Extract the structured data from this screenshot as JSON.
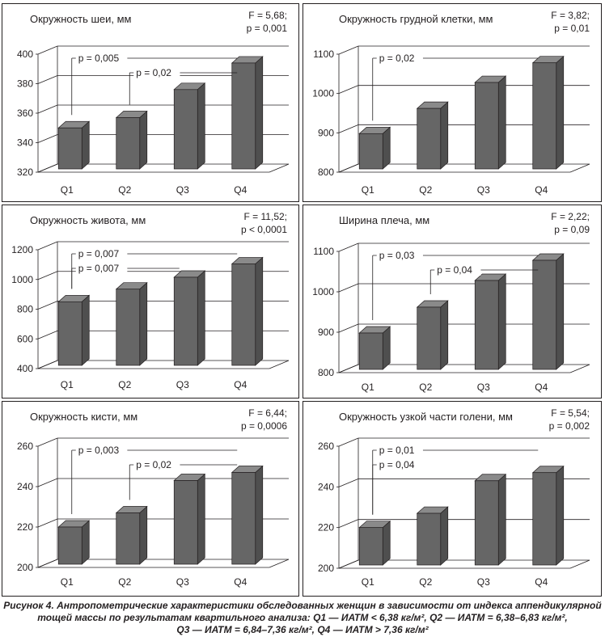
{
  "chart_data": [
    {
      "type": "bar",
      "title": "Окружность шеи, мм",
      "stats": [
        "F = 5,68;",
        "p = 0,001"
      ],
      "categories": [
        "Q1",
        "Q2",
        "Q3",
        "Q4"
      ],
      "values": [
        350,
        357,
        376,
        394
      ],
      "ylim": [
        320,
        400
      ],
      "yticks": [
        320,
        340,
        360,
        380,
        400
      ],
      "comparisons": [
        {
          "label": "p = 0,005",
          "from": "Q1",
          "to": "Q4"
        },
        {
          "label": "p = 0,02",
          "from": "Q2",
          "to": "Q4"
        }
      ],
      "grid": true
    },
    {
      "type": "bar",
      "title": "Окружность грудной клетки, мм",
      "stats": [
        "F = 3,82;",
        "p = 0,01"
      ],
      "categories": [
        "Q1",
        "Q2",
        "Q3",
        "Q4"
      ],
      "values": [
        898,
        962,
        1028,
        1078
      ],
      "ylim": [
        800,
        1100
      ],
      "yticks": [
        800,
        900,
        1000,
        1100
      ],
      "comparisons": [
        {
          "label": "p = 0,02",
          "from": "Q1",
          "to": "Q4"
        }
      ],
      "grid": true
    },
    {
      "type": "bar",
      "title": "Окружность живота, мм",
      "stats": [
        "F = 11,52;",
        "p < 0,0001"
      ],
      "categories": [
        "Q1",
        "Q2",
        "Q3",
        "Q4"
      ],
      "values": [
        850,
        935,
        1015,
        1105
      ],
      "ylim": [
        400,
        1200
      ],
      "yticks": [
        400,
        600,
        800,
        1000,
        1200
      ],
      "comparisons": [
        {
          "label": "p = 0,007",
          "from": "Q1",
          "to": "Q4"
        },
        {
          "label": "p = 0,007",
          "from": "Q1",
          "to": "Q3"
        }
      ],
      "grid": true
    },
    {
      "type": "bar",
      "title": "Ширина плеча, мм",
      "stats": [
        "F = 2,22;",
        "p = 0,09"
      ],
      "categories": [
        "Q1",
        "Q2",
        "Q3",
        "Q4"
      ],
      "values": [
        898,
        962,
        1028,
        1078
      ],
      "ylim": [
        800,
        1100
      ],
      "yticks": [
        800,
        900,
        1000,
        1100
      ],
      "comparisons": [
        {
          "label": "p = 0,03",
          "from": "Q1",
          "to": "Q4"
        },
        {
          "label": "p = 0,04",
          "from": "Q2",
          "to": "Q4"
        }
      ],
      "grid": true
    },
    {
      "type": "bar",
      "title": "Окружность кисти, мм",
      "stats": [
        "F = 6,44;",
        "p = 0,0006"
      ],
      "categories": [
        "Q1",
        "Q2",
        "Q3",
        "Q4"
      ],
      "values": [
        220,
        227,
        243,
        247
      ],
      "ylim": [
        200,
        260
      ],
      "yticks": [
        200,
        220,
        240,
        260
      ],
      "comparisons": [
        {
          "label": "p = 0,003",
          "from": "Q1",
          "to": "Q4"
        },
        {
          "label": "p = 0,02",
          "from": "Q2",
          "to": "Q4"
        }
      ],
      "grid": true
    },
    {
      "type": "bar",
      "title": "Окружность узкой части голени, мм",
      "stats": [
        "F = 5,54;",
        "p = 0,002"
      ],
      "categories": [
        "Q1",
        "Q2",
        "Q3",
        "Q4"
      ],
      "values": [
        220,
        227,
        243,
        247
      ],
      "ylim": [
        200,
        260
      ],
      "yticks": [
        200,
        220,
        240,
        260
      ],
      "comparisons": [
        {
          "label": "p = 0,01",
          "from": "Q1",
          "to": "Q4"
        },
        {
          "label": "p = 0,04",
          "from": "Q1",
          "to": "Q2"
        }
      ],
      "grid": true
    }
  ],
  "colors": {
    "bar_front": "#666666",
    "bar_side": "#4f4f4f",
    "bar_top": "#8a8a8a",
    "ink": "#231f20",
    "grid": "#231f20"
  },
  "caption": {
    "line1": "Рисунок 4. Антропометрические характеристики обследованных женщин в зависимости от индекса аппендикулярной",
    "line2": "тощей массы по результатам квартильного анализа: Q1 — ИАТМ < 6,38 кг/м², Q2 — ИАТМ = 6,38–6,83 кг/м²,",
    "line3": "Q3 — ИАТМ = 6,84–7,36 кг/м², Q4 — ИАТМ > 7,36 кг/м²"
  }
}
